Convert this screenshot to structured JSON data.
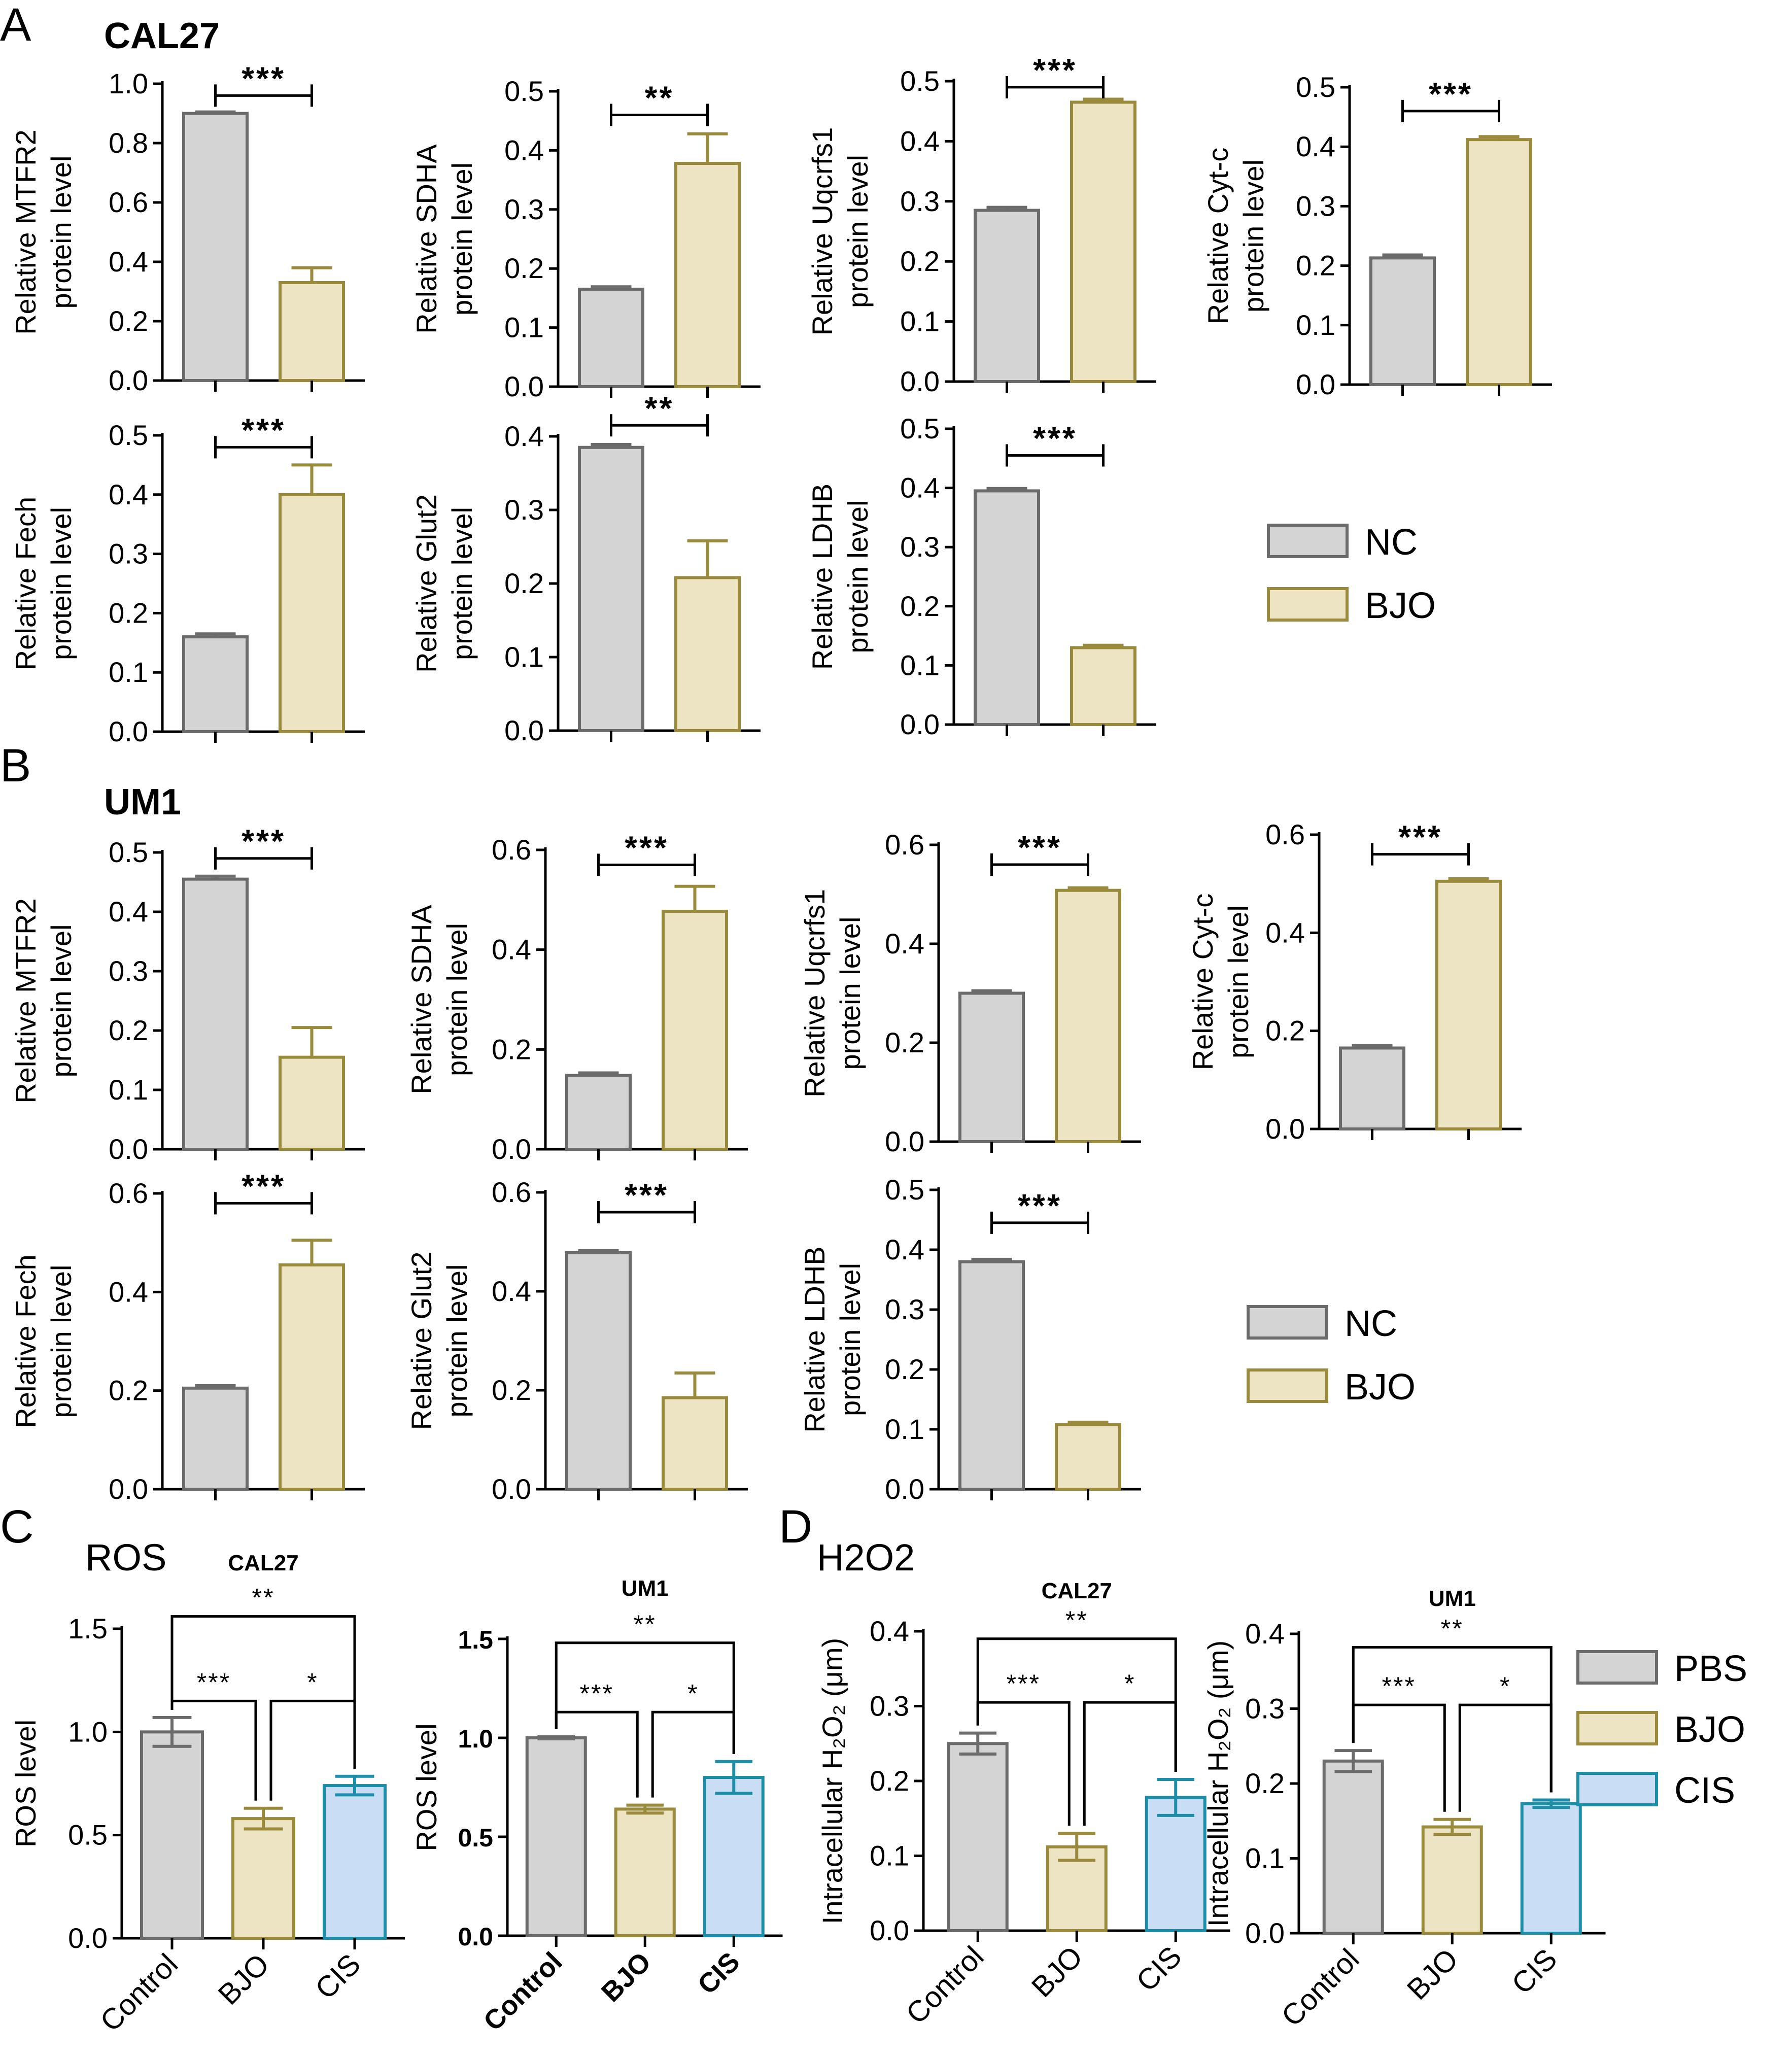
{
  "figure": {
    "panel_letters": [
      "A",
      "B",
      "C",
      "D"
    ],
    "row_titles": {
      "A": "CAL27",
      "B": "UM1",
      "C": "ROS",
      "D": "H2O2"
    }
  },
  "colors": {
    "NC": "#d4d4d4",
    "NC_edge": "#6b6b6b",
    "BJO": "#ede4c3",
    "BJO_edge": "#998a3c",
    "CIS": "#c9ddf5",
    "CIS_edge": "#1c8ea8",
    "PBS": "#d4d4d4",
    "PBS_edge": "#6b6b6b"
  },
  "legends": [
    {
      "entries": [
        {
          "key": "NC",
          "label": "NC"
        },
        {
          "key": "BJO",
          "label": "BJO"
        }
      ]
    },
    {
      "entries": [
        {
          "key": "NC",
          "label": "NC"
        },
        {
          "key": "BJO",
          "label": "BJO"
        }
      ]
    },
    {
      "entries": [
        {
          "key": "PBS",
          "label": "PBS"
        },
        {
          "key": "BJO",
          "label": "BJO"
        },
        {
          "key": "CIS",
          "label": "CIS"
        }
      ]
    }
  ],
  "chart_data": [
    {
      "id": "A1",
      "type": "bar",
      "ylabel": [
        "Relative MTFR2",
        "protein level"
      ],
      "ylim": [
        0,
        1.0
      ],
      "yticks": [
        0.0,
        0.2,
        0.4,
        0.6,
        0.8,
        1.0
      ],
      "tick_decimals": 1,
      "categories": [
        "NC",
        "BJO"
      ],
      "show_cat_labels": false,
      "values": [
        0.9,
        0.33
      ],
      "errors": [
        0.005,
        0.05
      ],
      "colors": [
        "NC",
        "BJO"
      ],
      "sig": [
        {
          "from": 0,
          "to": 1,
          "y": 0.96,
          "label": "***"
        }
      ]
    },
    {
      "id": "A2",
      "type": "bar",
      "ylabel": [
        "Relative SDHA",
        "protein level"
      ],
      "ylim": [
        0,
        0.5
      ],
      "yticks": [
        0.0,
        0.1,
        0.2,
        0.3,
        0.4,
        0.5
      ],
      "tick_decimals": 1,
      "categories": [
        "NC",
        "BJO"
      ],
      "show_cat_labels": false,
      "values": [
        0.165,
        0.378
      ],
      "errors": [
        0.004,
        0.05
      ],
      "colors": [
        "NC",
        "BJO"
      ],
      "sig": [
        {
          "from": 0,
          "to": 1,
          "y": 0.46,
          "label": "**"
        }
      ]
    },
    {
      "id": "A3",
      "type": "bar",
      "ylabel": [
        "Relative Uqcrfs1",
        "protein level"
      ],
      "ylim": [
        0,
        0.5
      ],
      "yticks": [
        0.0,
        0.1,
        0.2,
        0.3,
        0.4,
        0.5
      ],
      "tick_decimals": 1,
      "categories": [
        "NC",
        "BJO"
      ],
      "show_cat_labels": false,
      "values": [
        0.285,
        0.465
      ],
      "errors": [
        0.005,
        0.005
      ],
      "colors": [
        "NC",
        "BJO"
      ],
      "sig": [
        {
          "from": 0,
          "to": 1,
          "y": 0.49,
          "label": "***"
        }
      ]
    },
    {
      "id": "A4",
      "type": "bar",
      "ylabel": [
        "Relative Cyt-c",
        "protein level"
      ],
      "ylim": [
        0,
        0.5
      ],
      "yticks": [
        0.0,
        0.1,
        0.2,
        0.3,
        0.4,
        0.5
      ],
      "tick_decimals": 1,
      "categories": [
        "NC",
        "BJO"
      ],
      "show_cat_labels": false,
      "values": [
        0.213,
        0.412
      ],
      "errors": [
        0.005,
        0.005
      ],
      "colors": [
        "NC",
        "BJO"
      ],
      "sig": [
        {
          "from": 0,
          "to": 1,
          "y": 0.46,
          "label": "***"
        }
      ]
    },
    {
      "id": "A5",
      "type": "bar",
      "ylabel": [
        "Relative Fech",
        "protein level"
      ],
      "ylim": [
        0,
        0.5
      ],
      "yticks": [
        0.0,
        0.1,
        0.2,
        0.3,
        0.4,
        0.5
      ],
      "tick_decimals": 1,
      "categories": [
        "NC",
        "BJO"
      ],
      "show_cat_labels": false,
      "values": [
        0.16,
        0.4
      ],
      "errors": [
        0.005,
        0.05
      ],
      "colors": [
        "NC",
        "BJO"
      ],
      "sig": [
        {
          "from": 0,
          "to": 1,
          "y": 0.48,
          "label": "***"
        }
      ]
    },
    {
      "id": "A6",
      "type": "bar",
      "ylabel": [
        "Relative Glut2",
        "protein level"
      ],
      "ylim": [
        0,
        0.4
      ],
      "yticks": [
        0.0,
        0.1,
        0.2,
        0.3,
        0.4
      ],
      "tick_decimals": 1,
      "categories": [
        "NC",
        "BJO"
      ],
      "show_cat_labels": false,
      "values": [
        0.385,
        0.208
      ],
      "errors": [
        0.004,
        0.05
      ],
      "colors": [
        "NC",
        "BJO"
      ],
      "sig": [
        {
          "from": 0,
          "to": 1,
          "y": 0.415,
          "label": "**"
        }
      ]
    },
    {
      "id": "A7",
      "type": "bar",
      "ylabel": [
        "Relative LDHB",
        "protein level"
      ],
      "ylim": [
        0,
        0.5
      ],
      "yticks": [
        0.0,
        0.1,
        0.2,
        0.3,
        0.4,
        0.5
      ],
      "tick_decimals": 1,
      "categories": [
        "NC",
        "BJO"
      ],
      "show_cat_labels": false,
      "values": [
        0.395,
        0.13
      ],
      "errors": [
        0.004,
        0.004
      ],
      "colors": [
        "NC",
        "BJO"
      ],
      "sig": [
        {
          "from": 0,
          "to": 1,
          "y": 0.455,
          "label": "***"
        }
      ]
    },
    {
      "id": "B1",
      "type": "bar",
      "ylabel": [
        "Relative MTFR2",
        "protein level"
      ],
      "ylim": [
        0,
        0.5
      ],
      "yticks": [
        0.0,
        0.1,
        0.2,
        0.3,
        0.4,
        0.5
      ],
      "tick_decimals": 1,
      "categories": [
        "NC",
        "BJO"
      ],
      "show_cat_labels": false,
      "values": [
        0.455,
        0.155
      ],
      "errors": [
        0.005,
        0.05
      ],
      "colors": [
        "NC",
        "BJO"
      ],
      "sig": [
        {
          "from": 0,
          "to": 1,
          "y": 0.49,
          "label": "***"
        }
      ]
    },
    {
      "id": "B2",
      "type": "bar",
      "ylabel": [
        "Relative SDHA",
        "protein level"
      ],
      "ylim": [
        0,
        0.6
      ],
      "yticks": [
        0.0,
        0.2,
        0.4,
        0.6
      ],
      "tick_decimals": 1,
      "categories": [
        "NC",
        "BJO"
      ],
      "show_cat_labels": false,
      "values": [
        0.148,
        0.477
      ],
      "errors": [
        0.005,
        0.05
      ],
      "colors": [
        "NC",
        "BJO"
      ],
      "sig": [
        {
          "from": 0,
          "to": 1,
          "y": 0.57,
          "label": "***"
        }
      ]
    },
    {
      "id": "B3",
      "type": "bar",
      "ylabel": [
        "Relative Uqcrfs1",
        "protein level"
      ],
      "ylim": [
        0,
        0.6
      ],
      "yticks": [
        0.0,
        0.2,
        0.4,
        0.6
      ],
      "tick_decimals": 1,
      "categories": [
        "NC",
        "BJO"
      ],
      "show_cat_labels": false,
      "values": [
        0.3,
        0.508
      ],
      "errors": [
        0.005,
        0.005
      ],
      "colors": [
        "NC",
        "BJO"
      ],
      "sig": [
        {
          "from": 0,
          "to": 1,
          "y": 0.56,
          "label": "***"
        }
      ]
    },
    {
      "id": "B4",
      "type": "bar",
      "ylabel": [
        "Relative Cyt-c",
        "protein level"
      ],
      "ylim": [
        0,
        0.6
      ],
      "yticks": [
        0.0,
        0.2,
        0.4,
        0.6
      ],
      "tick_decimals": 1,
      "categories": [
        "NC",
        "BJO"
      ],
      "show_cat_labels": false,
      "values": [
        0.165,
        0.505
      ],
      "errors": [
        0.005,
        0.005
      ],
      "colors": [
        "NC",
        "BJO"
      ],
      "sig": [
        {
          "from": 0,
          "to": 1,
          "y": 0.56,
          "label": "***"
        }
      ]
    },
    {
      "id": "B5",
      "type": "bar",
      "ylabel": [
        "Relative Fech",
        "protein level"
      ],
      "ylim": [
        0,
        0.6
      ],
      "yticks": [
        0.0,
        0.2,
        0.4,
        0.6
      ],
      "tick_decimals": 1,
      "categories": [
        "NC",
        "BJO"
      ],
      "show_cat_labels": false,
      "values": [
        0.205,
        0.455
      ],
      "errors": [
        0.005,
        0.05
      ],
      "colors": [
        "NC",
        "BJO"
      ],
      "sig": [
        {
          "from": 0,
          "to": 1,
          "y": 0.58,
          "label": "***"
        }
      ]
    },
    {
      "id": "B6",
      "type": "bar",
      "ylabel": [
        "Relative Glut2",
        "protein level"
      ],
      "ylim": [
        0,
        0.6
      ],
      "yticks": [
        0.0,
        0.2,
        0.4,
        0.6
      ],
      "tick_decimals": 1,
      "categories": [
        "NC",
        "BJO"
      ],
      "show_cat_labels": false,
      "values": [
        0.478,
        0.185
      ],
      "errors": [
        0.004,
        0.05
      ],
      "colors": [
        "NC",
        "BJO"
      ],
      "sig": [
        {
          "from": 0,
          "to": 1,
          "y": 0.56,
          "label": "***"
        }
      ]
    },
    {
      "id": "B7",
      "type": "bar",
      "ylabel": [
        "Relative LDHB",
        "protein level"
      ],
      "ylim": [
        0,
        0.5
      ],
      "yticks": [
        0.0,
        0.1,
        0.2,
        0.3,
        0.4,
        0.5
      ],
      "tick_decimals": 1,
      "categories": [
        "NC",
        "BJO"
      ],
      "show_cat_labels": false,
      "values": [
        0.38,
        0.108
      ],
      "errors": [
        0.004,
        0.004
      ],
      "colors": [
        "NC",
        "BJO"
      ],
      "sig": [
        {
          "from": 0,
          "to": 1,
          "y": 0.445,
          "label": "***"
        }
      ]
    },
    {
      "id": "C1",
      "type": "bar",
      "title": "CAL27",
      "ylabel": [
        "ROS level"
      ],
      "ylim": [
        0,
        1.5
      ],
      "yticks": [
        0.0,
        0.5,
        1.0,
        1.5
      ],
      "tick_decimals": 1,
      "bold_ticks": false,
      "categories": [
        "Control",
        "BJO",
        "CIS"
      ],
      "show_cat_labels": true,
      "values": [
        1.0,
        0.58,
        0.74
      ],
      "errors": [
        0.07,
        0.05,
        0.045
      ],
      "colors": [
        "PBS",
        "BJO",
        "CIS"
      ],
      "sig": [
        {
          "from": 0,
          "to": 2,
          "y": 1.56,
          "label": "**"
        },
        {
          "from": 0,
          "to": 1,
          "y": 1.15,
          "label": "***",
          "drop_to": true
        },
        {
          "from": 1,
          "to": 2,
          "y": 1.15,
          "label": "*",
          "drop_to": true
        }
      ]
    },
    {
      "id": "C2",
      "type": "bar",
      "title": "UM1",
      "ylabel": [
        "ROS level"
      ],
      "ylim": [
        0,
        1.5
      ],
      "yticks": [
        0.0,
        0.5,
        1.0,
        1.5
      ],
      "tick_decimals": 1,
      "bold_ticks": true,
      "categories": [
        "Control",
        "BJO",
        "CIS"
      ],
      "show_cat_labels": true,
      "values": [
        1.0,
        0.64,
        0.8
      ],
      "errors": [
        0.005,
        0.02,
        0.08
      ],
      "colors": [
        "PBS",
        "BJO",
        "CIS"
      ],
      "sig": [
        {
          "from": 0,
          "to": 2,
          "y": 1.48,
          "label": "**"
        },
        {
          "from": 0,
          "to": 1,
          "y": 1.13,
          "label": "***",
          "drop_to": true
        },
        {
          "from": 1,
          "to": 2,
          "y": 1.13,
          "label": "*",
          "drop_to": true
        }
      ]
    },
    {
      "id": "D1",
      "type": "bar",
      "title": "CAL27",
      "ylabel": [
        "Intracellular H₂O₂ (μm)"
      ],
      "ylim": [
        0,
        0.4
      ],
      "yticks": [
        0.0,
        0.1,
        0.2,
        0.3,
        0.4
      ],
      "tick_decimals": 1,
      "bold_ticks": false,
      "categories": [
        "Control",
        "BJO",
        "CIS"
      ],
      "show_cat_labels": true,
      "values": [
        0.25,
        0.112,
        0.178
      ],
      "errors": [
        0.014,
        0.018,
        0.024
      ],
      "colors": [
        "PBS",
        "BJO",
        "CIS"
      ],
      "sig": [
        {
          "from": 0,
          "to": 2,
          "y": 0.39,
          "label": "**"
        },
        {
          "from": 0,
          "to": 1,
          "y": 0.305,
          "label": "***",
          "drop_to": true
        },
        {
          "from": 1,
          "to": 2,
          "y": 0.305,
          "label": "*",
          "drop_to": true
        }
      ]
    },
    {
      "id": "D2",
      "type": "bar",
      "title": "UM1",
      "ylabel": [
        "Intracellular H₂O₂ (μm)"
      ],
      "ylim": [
        0,
        0.4
      ],
      "yticks": [
        0.0,
        0.1,
        0.2,
        0.3,
        0.4
      ],
      "tick_decimals": 1,
      "bold_ticks": false,
      "categories": [
        "Control",
        "BJO",
        "CIS"
      ],
      "show_cat_labels": true,
      "values": [
        0.23,
        0.142,
        0.173
      ],
      "errors": [
        0.014,
        0.01,
        0.005
      ],
      "colors": [
        "PBS",
        "BJO",
        "CIS"
      ],
      "sig": [
        {
          "from": 0,
          "to": 2,
          "y": 0.382,
          "label": "**"
        },
        {
          "from": 0,
          "to": 1,
          "y": 0.305,
          "label": "***",
          "drop_to": true
        },
        {
          "from": 1,
          "to": 2,
          "y": 0.305,
          "label": "*",
          "drop_to": true
        }
      ]
    }
  ]
}
